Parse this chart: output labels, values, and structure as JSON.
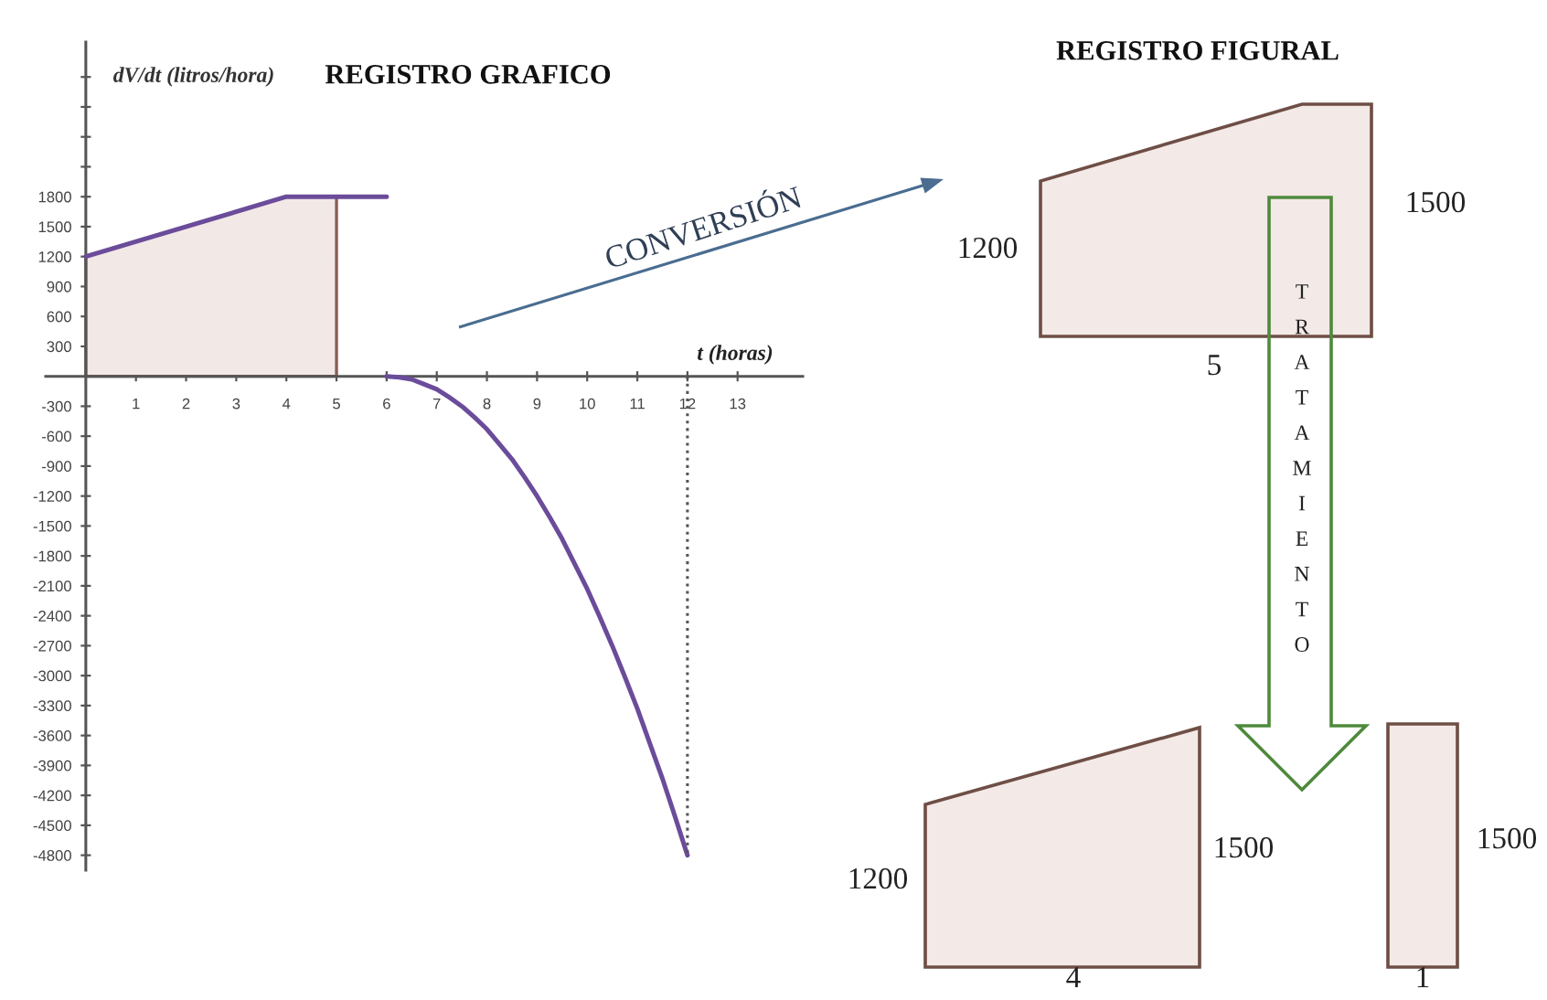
{
  "chart_data": [
    {
      "type": "line",
      "title": "REGISTRO GRAFICO",
      "xlabel": "t (horas)",
      "ylabel": "dV/dt (litros/hora)",
      "series": [
        {
          "type": "area",
          "color": "#f2e8e6",
          "x": [
            0,
            4,
            5
          ],
          "values": [
            1200,
            1800,
            1800
          ]
        },
        {
          "color": "#6b4c9a",
          "x": [
            0,
            4,
            6
          ],
          "values": [
            1200,
            1800,
            1800
          ]
        },
        {
          "color": "#6b4c9a",
          "x": [
            6,
            6.25,
            6.5,
            6.75,
            7,
            7.25,
            7.5,
            7.75,
            8,
            8.25,
            8.5,
            8.75,
            9,
            9.25,
            9.5,
            9.75,
            10,
            10.25,
            10.5,
            10.75,
            11,
            11.25,
            11.5,
            11.75,
            12
          ],
          "values": [
            0,
            -10,
            -30,
            -80,
            -130,
            -210,
            -300,
            -410,
            -530,
            -680,
            -830,
            -1010,
            -1200,
            -1410,
            -1630,
            -1880,
            -2130,
            -2410,
            -2700,
            -3010,
            -3330,
            -3680,
            -4030,
            -4410,
            -4800
          ]
        },
        {
          "color": "#555555",
          "line_style": "dotted",
          "x": [
            12,
            12
          ],
          "values": [
            0,
            -4800
          ]
        }
      ],
      "xlim": [
        -0.8,
        14.3
      ],
      "ylim": [
        -4950,
        3350
      ],
      "xticks": [
        1,
        2,
        3,
        4,
        5,
        6,
        7,
        8,
        9,
        10,
        11,
        12,
        13
      ],
      "yticks": [
        {
          "value": 3000,
          "label": null
        },
        {
          "value": 2700,
          "label": null
        },
        {
          "value": 2400,
          "label": null
        },
        {
          "value": 2100,
          "label": null
        },
        1800,
        1500,
        1200,
        900,
        600,
        300,
        -300,
        -600,
        -900,
        -1200,
        -1500,
        -1800,
        -2100,
        -2400,
        -2700,
        -3000,
        -3300,
        -3600,
        -3900,
        -4200,
        -4500,
        -4800
      ]
    },
    {
      "type": "other",
      "title": "REGISTRO FIGURAL",
      "annotations": [
        "CONVERSIÓN",
        "1200",
        "1500",
        "5",
        "TRATAMIENTO",
        "1200",
        "1500",
        "4",
        "1500",
        "1"
      ]
    }
  ]
}
